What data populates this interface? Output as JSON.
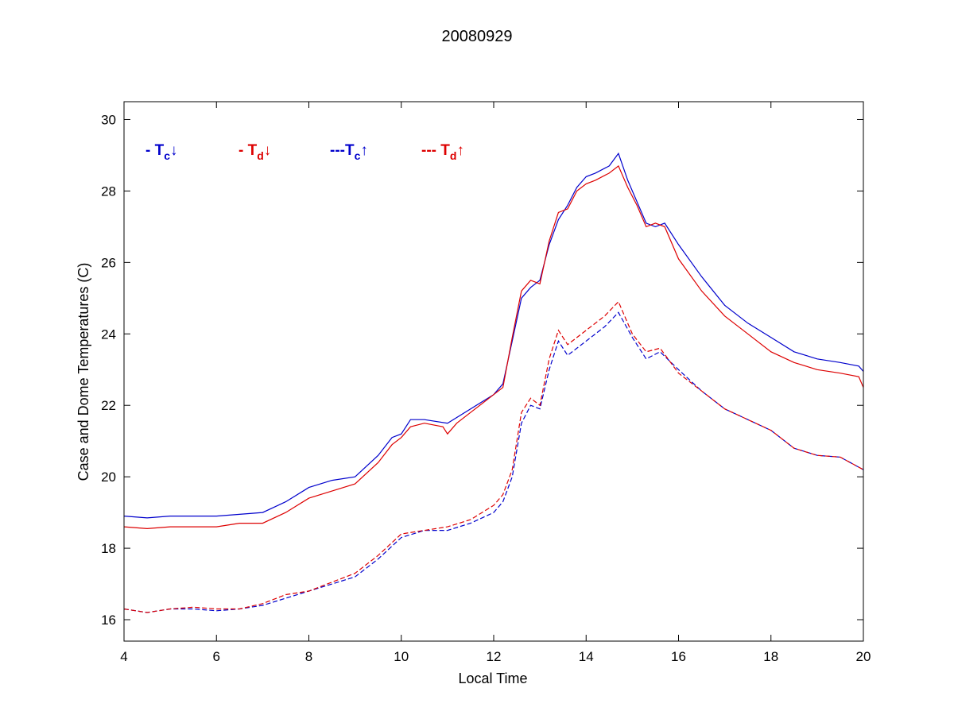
{
  "chart_data": {
    "type": "line",
    "title": "20080929",
    "xlabel": "Local Time",
    "ylabel": "Case and Dome Temperatures (C)",
    "xlim": [
      4,
      20
    ],
    "ylim": [
      15.4,
      30.5
    ],
    "xticks": [
      4,
      6,
      8,
      10,
      12,
      14,
      16,
      18,
      20
    ],
    "yticks": [
      16,
      18,
      20,
      22,
      24,
      26,
      28,
      30
    ],
    "grid": false,
    "legend_placement": "top-left",
    "legend": [
      {
        "prefix": "- T",
        "sub": "c",
        "arrow": "↓",
        "color": "#0000cc"
      },
      {
        "prefix": "- T",
        "sub": "d",
        "arrow": "↓",
        "color": "#dd0000"
      },
      {
        "prefix": "---T",
        "sub": "c",
        "arrow": "↑",
        "color": "#0000cc"
      },
      {
        "prefix": "--- T",
        "sub": "d",
        "arrow": "↑",
        "color": "#dd0000"
      }
    ],
    "series": [
      {
        "color": "#0000cc",
        "style": "solid",
        "x": [
          4,
          4.5,
          5,
          5.5,
          6,
          6.5,
          7,
          7.5,
          8,
          8.5,
          9,
          9.5,
          9.8,
          10,
          10.2,
          10.5,
          11,
          11.5,
          12,
          12.2,
          12.4,
          12.6,
          12.8,
          13,
          13.2,
          13.4,
          13.6,
          13.8,
          14,
          14.2,
          14.5,
          14.7,
          14.9,
          15.1,
          15.3,
          15.5,
          15.7,
          16,
          16.5,
          17,
          17.5,
          18,
          18.5,
          19,
          19.5,
          19.9,
          20
        ],
        "y": [
          18.9,
          18.85,
          18.9,
          18.9,
          18.9,
          18.95,
          19.0,
          19.3,
          19.7,
          19.9,
          20.0,
          20.6,
          21.1,
          21.2,
          21.6,
          21.6,
          21.5,
          21.9,
          22.3,
          22.6,
          23.8,
          25.0,
          25.3,
          25.5,
          26.5,
          27.2,
          27.6,
          28.1,
          28.4,
          28.5,
          28.7,
          29.05,
          28.3,
          27.7,
          27.1,
          27.0,
          27.1,
          26.5,
          25.6,
          24.8,
          24.3,
          23.9,
          23.5,
          23.3,
          23.2,
          23.1,
          22.95
        ]
      },
      {
        "color": "#dd0000",
        "style": "solid",
        "x": [
          4,
          4.5,
          5,
          5.5,
          6,
          6.5,
          7,
          7.5,
          8,
          8.5,
          9,
          9.5,
          9.8,
          10,
          10.2,
          10.5,
          10.9,
          11,
          11.2,
          11.5,
          12,
          12.2,
          12.4,
          12.6,
          12.8,
          13,
          13.2,
          13.4,
          13.6,
          13.8,
          14,
          14.2,
          14.5,
          14.7,
          14.9,
          15.1,
          15.3,
          15.5,
          15.7,
          16,
          16.5,
          17,
          17.5,
          18,
          18.5,
          19,
          19.5,
          19.9,
          20
        ],
        "y": [
          18.6,
          18.55,
          18.6,
          18.6,
          18.6,
          18.7,
          18.7,
          19.0,
          19.4,
          19.6,
          19.8,
          20.4,
          20.9,
          21.1,
          21.4,
          21.5,
          21.4,
          21.2,
          21.5,
          21.8,
          22.3,
          22.5,
          23.9,
          25.2,
          25.5,
          25.4,
          26.6,
          27.4,
          27.5,
          28.0,
          28.2,
          28.3,
          28.5,
          28.7,
          28.1,
          27.6,
          27.0,
          27.1,
          27.0,
          26.1,
          25.2,
          24.5,
          24.0,
          23.5,
          23.2,
          23.0,
          22.9,
          22.8,
          22.5
        ]
      },
      {
        "color": "#0000cc",
        "style": "dashed",
        "x": [
          4,
          4.5,
          5,
          5.5,
          6,
          6.5,
          7,
          7.5,
          8,
          8.5,
          9,
          9.5,
          10,
          10.5,
          11,
          11.5,
          12,
          12.2,
          12.4,
          12.6,
          12.8,
          13,
          13.2,
          13.4,
          13.6,
          14,
          14.4,
          14.7,
          15,
          15.3,
          15.6,
          16,
          16.5,
          17,
          17.5,
          18,
          18.5,
          19,
          19.5,
          20
        ],
        "y": [
          16.3,
          16.2,
          16.3,
          16.3,
          16.25,
          16.3,
          16.4,
          16.6,
          16.8,
          17.0,
          17.2,
          17.7,
          18.3,
          18.5,
          18.5,
          18.7,
          19.0,
          19.3,
          20.0,
          21.5,
          22.0,
          21.9,
          23.0,
          23.8,
          23.4,
          23.8,
          24.2,
          24.6,
          23.9,
          23.3,
          23.5,
          23.0,
          22.4,
          21.9,
          21.6,
          21.3,
          20.8,
          20.6,
          20.55,
          20.2
        ]
      },
      {
        "color": "#dd0000",
        "style": "dashed",
        "x": [
          4,
          4.5,
          5,
          5.5,
          6,
          6.5,
          7,
          7.5,
          8,
          8.5,
          9,
          9.5,
          10,
          10.5,
          11,
          11.5,
          12,
          12.2,
          12.4,
          12.6,
          12.8,
          13,
          13.2,
          13.4,
          13.6,
          14,
          14.4,
          14.7,
          15,
          15.3,
          15.6,
          16,
          16.5,
          17,
          17.5,
          18,
          18.5,
          19,
          19.5,
          20
        ],
        "y": [
          16.3,
          16.2,
          16.3,
          16.35,
          16.3,
          16.3,
          16.45,
          16.7,
          16.8,
          17.05,
          17.3,
          17.8,
          18.4,
          18.5,
          18.6,
          18.8,
          19.2,
          19.5,
          20.2,
          21.8,
          22.2,
          22.0,
          23.3,
          24.1,
          23.7,
          24.1,
          24.5,
          24.9,
          24.0,
          23.5,
          23.6,
          22.9,
          22.4,
          21.9,
          21.6,
          21.3,
          20.8,
          20.6,
          20.55,
          20.2
        ]
      }
    ]
  }
}
